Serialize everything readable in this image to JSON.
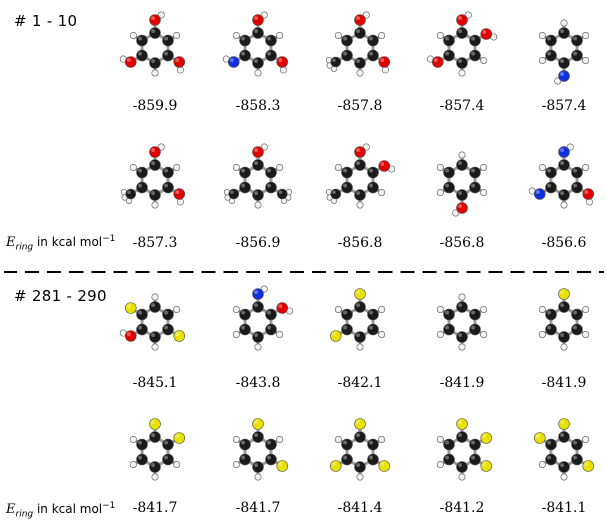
{
  "groups": [
    {
      "label": "# 1 - 10",
      "rows": [
        {
          "values": [
            "-859.9",
            "-858.3",
            "-857.8",
            "-857.4",
            "-857.4"
          ]
        },
        {
          "values": [
            "-857.3",
            "-856.9",
            "-856.8",
            "-856.8",
            "-856.6"
          ]
        }
      ]
    },
    {
      "label": "# 281 - 290",
      "rows": [
        {
          "values": [
            "-845.1",
            "-843.8",
            "-842.1",
            "-841.9",
            "-841.9"
          ]
        },
        {
          "values": [
            "-841.7",
            "-841.7",
            "-841.4",
            "-841.2",
            "-841.1"
          ]
        }
      ]
    }
  ],
  "axis_label": {
    "symbol": "E",
    "subscript": "ring",
    "unit": "in kcal mol",
    "exponent": "−1"
  },
  "molecules": [
    {
      "substituents": [
        "O",
        "",
        "O",
        "",
        "O",
        ""
      ]
    },
    {
      "substituents": [
        "O",
        "",
        "O",
        "",
        "N",
        ""
      ]
    },
    {
      "substituents": [
        "O",
        "",
        "O",
        "",
        "C",
        ""
      ]
    },
    {
      "substituents": [
        "O",
        "O",
        "",
        "",
        "O",
        ""
      ]
    },
    {
      "substituents": [
        "",
        "",
        "",
        "N",
        "",
        ""
      ],
      "fused": true
    },
    {
      "substituents": [
        "O",
        "",
        "O",
        "",
        "C",
        ""
      ]
    },
    {
      "substituents": [
        "O",
        "",
        "C",
        "",
        "C",
        ""
      ]
    },
    {
      "substituents": [
        "O",
        "O",
        "",
        "",
        "C",
        ""
      ]
    },
    {
      "substituents": [
        "",
        "",
        "",
        "O",
        "",
        ""
      ],
      "fused": true
    },
    {
      "substituents": [
        "N",
        "",
        "O",
        "",
        "N",
        ""
      ]
    },
    {
      "substituents": [
        "",
        "",
        "S",
        "",
        "O",
        "S"
      ]
    },
    {
      "substituents": [
        "N",
        "O",
        "",
        "",
        "",
        ""
      ],
      "fused": true
    },
    {
      "substituents": [
        "S",
        "",
        "",
        "",
        "S",
        ""
      ]
    },
    {
      "substituents": [
        "",
        "",
        "",
        "",
        "",
        ""
      ]
    },
    {
      "substituents": [
        "S",
        "",
        "",
        "",
        "",
        ""
      ]
    },
    {
      "substituents": [
        "S",
        "S",
        "",
        "",
        "",
        ""
      ]
    },
    {
      "substituents": [
        "S",
        "",
        "S",
        "",
        "",
        ""
      ]
    },
    {
      "substituents": [
        "S",
        "",
        "S",
        "",
        "S",
        ""
      ]
    },
    {
      "substituents": [
        "S",
        "S",
        "S",
        "",
        "",
        ""
      ]
    },
    {
      "substituents": [
        "S",
        "",
        "S",
        "",
        "",
        "S"
      ]
    }
  ],
  "atom_colors": {
    "C": "#1a1a1a",
    "O": "#e00000",
    "N": "#1030e0",
    "S": "#e8e000",
    "H": "#f2f2f2"
  }
}
